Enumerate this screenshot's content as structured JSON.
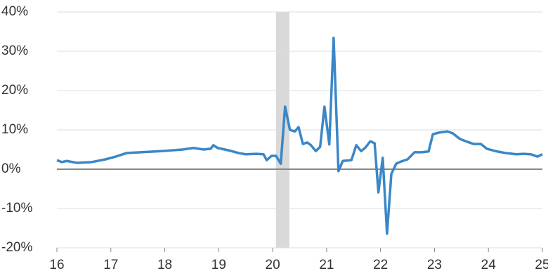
{
  "chart_data": {
    "type": "line",
    "x": [
      16.0,
      16.09,
      16.18,
      16.38,
      16.64,
      16.9,
      17.09,
      17.29,
      17.55,
      17.94,
      18.33,
      18.53,
      18.72,
      18.85,
      18.9,
      18.98,
      19.18,
      19.37,
      19.5,
      19.7,
      19.83,
      19.89,
      19.98,
      20.06,
      20.15,
      20.23,
      20.32,
      20.41,
      20.48,
      20.56,
      20.64,
      20.71,
      20.8,
      20.88,
      20.96,
      21.05,
      21.13,
      21.22,
      21.3,
      21.46,
      21.55,
      21.64,
      21.72,
      21.81,
      21.89,
      21.96,
      22.04,
      22.12,
      22.2,
      22.29,
      22.39,
      22.5,
      22.63,
      22.76,
      22.89,
      22.97,
      23.08,
      23.24,
      23.34,
      23.47,
      23.6,
      23.73,
      23.86,
      23.97,
      24.13,
      24.32,
      24.52,
      24.65,
      24.78,
      24.91,
      25.0
    ],
    "values": [
      2.3,
      1.8,
      2.1,
      1.6,
      1.8,
      2.5,
      3.2,
      4.1,
      4.3,
      4.6,
      5.0,
      5.4,
      5.0,
      5.2,
      6.1,
      5.4,
      4.8,
      4.1,
      3.8,
      3.9,
      3.8,
      2.3,
      3.4,
      3.4,
      1.4,
      15.9,
      10.0,
      9.6,
      10.7,
      6.4,
      6.8,
      6.1,
      4.6,
      5.7,
      15.9,
      6.3,
      33.4,
      -0.5,
      2.1,
      2.3,
      6.1,
      4.6,
      5.5,
      7.1,
      6.6,
      -5.9,
      2.9,
      -16.4,
      -1.2,
      1.4,
      2.0,
      2.5,
      4.3,
      4.3,
      4.5,
      8.9,
      9.3,
      9.6,
      9.1,
      7.7,
      7.0,
      6.4,
      6.4,
      5.2,
      4.6,
      4.1,
      3.8,
      3.9,
      3.8,
      3.2,
      3.8
    ],
    "color": "#3a87c8",
    "xlim": [
      16,
      25
    ],
    "xticks": [
      16,
      17,
      18,
      19,
      20,
      21,
      22,
      23,
      24,
      25
    ],
    "ylim": [
      -20,
      40
    ],
    "yticks": [
      {
        "value": -20,
        "label": "-20%"
      },
      {
        "value": -10,
        "label": "-10%"
      },
      {
        "value": 0,
        "label": "0%"
      },
      {
        "value": 10,
        "label": "10%"
      },
      {
        "value": 20,
        "label": "20%"
      },
      {
        "value": 30,
        "label": "30%"
      },
      {
        "value": 40,
        "label": "40%"
      }
    ],
    "grid": true,
    "shaded_regions": [
      {
        "xlim": [
          20.06,
          20.31
        ],
        "color": "#d9d9d9"
      }
    ]
  }
}
